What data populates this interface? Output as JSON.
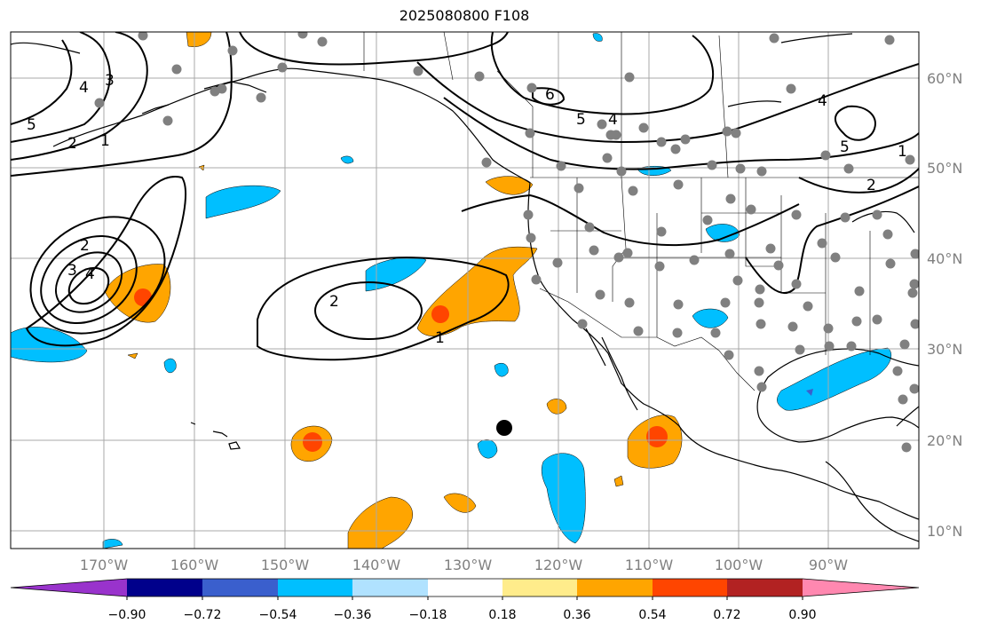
{
  "title": "2025080800 F108",
  "map": {
    "lon_labels": [
      "170°W",
      "160°W",
      "150°W",
      "140°W",
      "130°W",
      "120°W",
      "110°W",
      "100°W",
      "90°W"
    ],
    "lat_labels": [
      "60°N",
      "50°N",
      "40°N",
      "30°N",
      "20°N",
      "10°N"
    ],
    "grid": true,
    "contour_labels": [
      "5",
      "4",
      "3",
      "2",
      "1",
      "2",
      "3",
      "4",
      "2",
      "1",
      "6",
      "5",
      "4",
      "4",
      "5",
      "2",
      "1"
    ]
  },
  "colorbar": {
    "ticks": [
      "−0.90",
      "−0.72",
      "−0.54",
      "−0.36",
      "−0.18",
      "0.18",
      "0.36",
      "0.54",
      "0.72",
      "0.90"
    ],
    "colors": [
      "#9933cc",
      "#00008b",
      "#3a5fcd",
      "#00bfff",
      "#b0e2ff",
      "#ffffff",
      "#ffec8b",
      "#ffa500",
      "#ff4500",
      "#b22222",
      "#ff88b0"
    ]
  }
}
